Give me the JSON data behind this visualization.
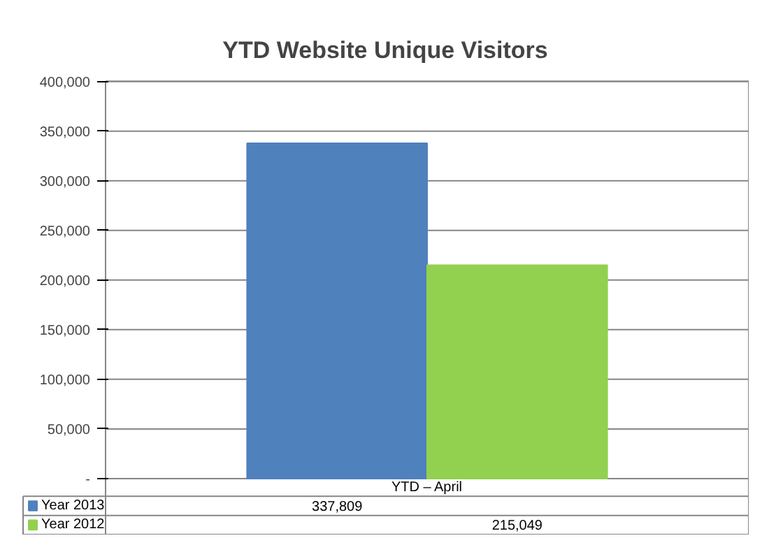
{
  "chart_data": {
    "type": "bar",
    "title": "YTD Website Unique Visitors",
    "categories": [
      "YTD – April"
    ],
    "series": [
      {
        "name": "Year 2013",
        "color": "#4f81bd",
        "values": [
          337809
        ],
        "value_labels": [
          "337,809"
        ]
      },
      {
        "name": "Year 2012",
        "color": "#92d050",
        "values": [
          215049
        ],
        "value_labels": [
          "215,049"
        ]
      }
    ],
    "ylim": [
      0,
      400000
    ],
    "yticks": [
      {
        "value": 0,
        "label": "-"
      },
      {
        "value": 50000,
        "label": "50,000"
      },
      {
        "value": 100000,
        "label": "100,000"
      },
      {
        "value": 150000,
        "label": "150,000"
      },
      {
        "value": 200000,
        "label": "200,000"
      },
      {
        "value": 250000,
        "label": "250,000"
      },
      {
        "value": 300000,
        "label": "300,000"
      },
      {
        "value": 350000,
        "label": "350,000"
      },
      {
        "value": 400000,
        "label": "400,000"
      }
    ],
    "grid": "y",
    "legend": "bottom"
  }
}
